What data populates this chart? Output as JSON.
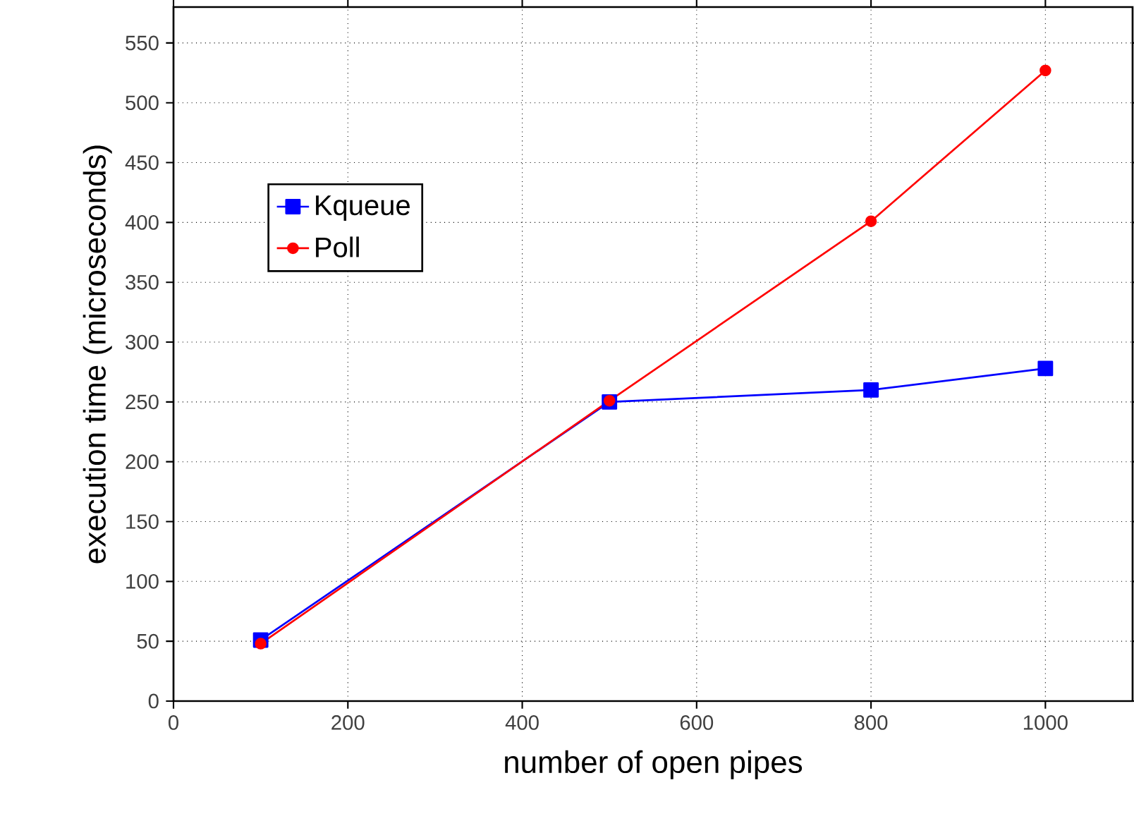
{
  "chart_data": {
    "type": "line",
    "xlabel": "number of open pipes",
    "ylabel": "execution time (microseconds)",
    "x": [
      100,
      500,
      800,
      1000
    ],
    "series": [
      {
        "name": "Kqueue",
        "color": "#0000ff",
        "marker": "square",
        "values": [
          51,
          250,
          260,
          278
        ]
      },
      {
        "name": "Poll",
        "color": "#ff0000",
        "marker": "circle",
        "values": [
          48,
          251,
          401,
          527
        ]
      }
    ],
    "xlim": [
      0,
      1100
    ],
    "ylim": [
      0,
      580
    ],
    "xticks": [
      0,
      200,
      400,
      600,
      800,
      1000
    ],
    "yticks": [
      0,
      50,
      100,
      150,
      200,
      250,
      300,
      350,
      400,
      450,
      500,
      550
    ],
    "grid": true,
    "legend": "top left",
    "line_style": "solid"
  }
}
